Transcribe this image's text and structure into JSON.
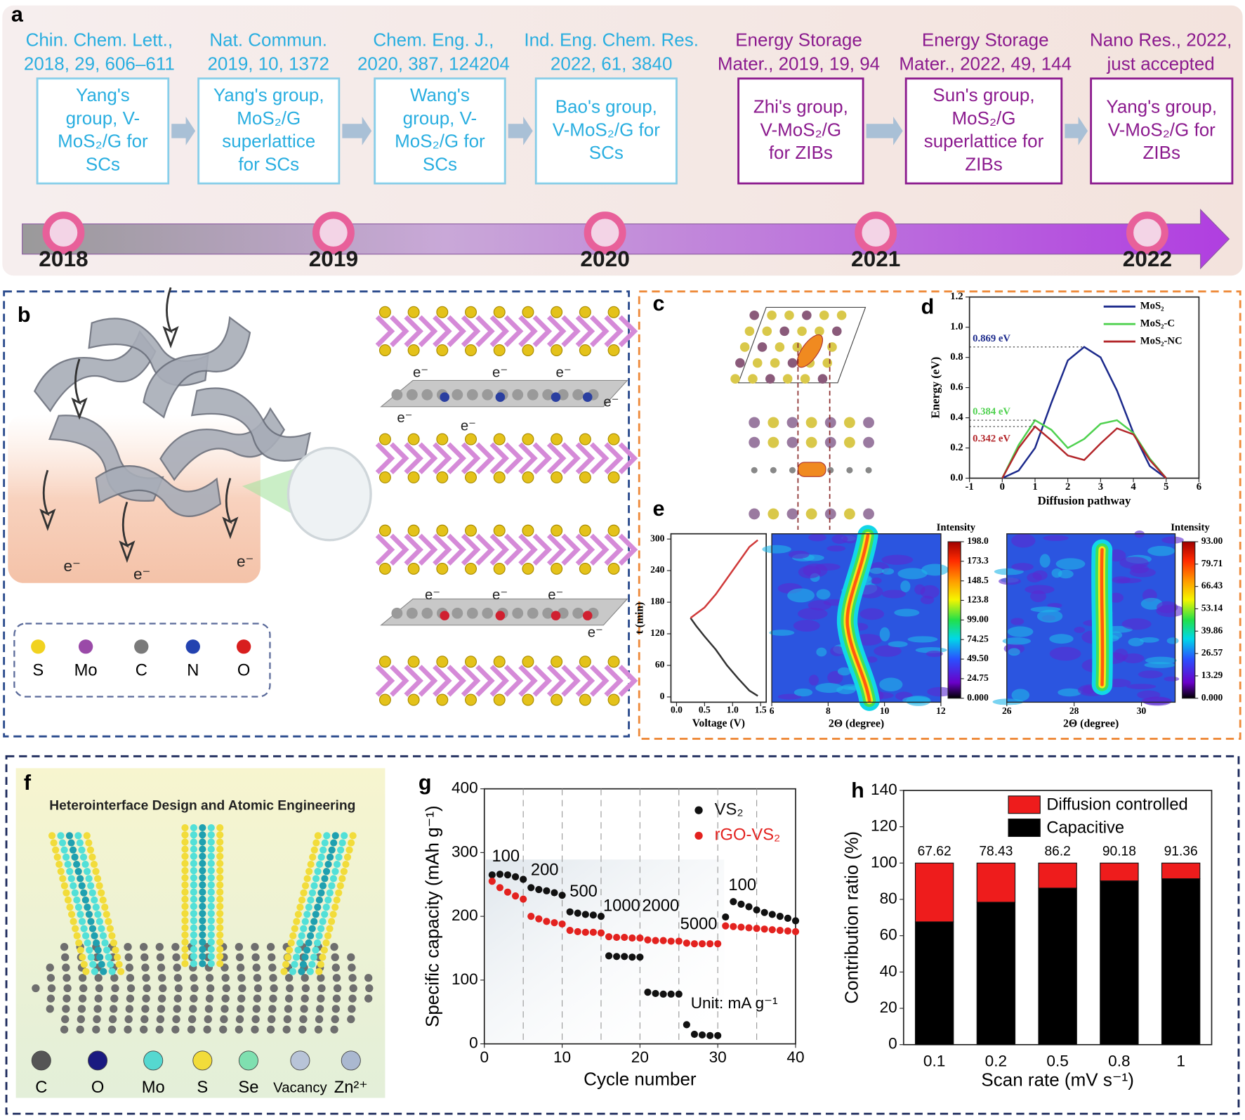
{
  "panel_labels": [
    "a",
    "b",
    "c",
    "d",
    "e",
    "f",
    "g",
    "h"
  ],
  "timeline": {
    "entries": [
      {
        "citation": [
          "Chin. Chem. Lett.,",
          "2018, 29, 606–611"
        ],
        "box": [
          "Yang's",
          "group, V-",
          "MoS₂/G for",
          "SCs"
        ],
        "color": "#29aee0"
      },
      {
        "citation": [
          "Nat. Commun.",
          "2019, 10, 1372"
        ],
        "box": [
          "Yang's group,",
          "MoS₂/G",
          "superlattice",
          "for SCs"
        ],
        "color": "#29aee0"
      },
      {
        "citation": [
          "Chem. Eng. J.,",
          "2020, 387, 124204"
        ],
        "box": [
          "Wang's",
          "group, V-",
          "MoS₂/G for",
          "SCs"
        ],
        "color": "#29aee0"
      },
      {
        "citation": [
          "Ind. Eng. Chem. Res.",
          "2022, 61, 3840"
        ],
        "box": [
          "Bao's group,",
          "V-MoS₂/G for",
          "SCs"
        ],
        "color": "#29aee0"
      },
      {
        "citation": [
          "Energy Storage",
          "Mater., 2019, 19, 94"
        ],
        "box": [
          "Zhi's group,",
          "V-MoS₂/G",
          "for ZIBs"
        ],
        "color": "#8b1a8e"
      },
      {
        "citation": [
          "Energy Storage",
          "Mater., 2022, 49, 144"
        ],
        "box": [
          "Sun's group,",
          "MoS₂/G",
          "superlattice for",
          "ZIBs"
        ],
        "color": "#8b1a8e"
      },
      {
        "citation": [
          "Nano Res., 2022,",
          "just accepted"
        ],
        "box": [
          "Yang's group,",
          "V-MoS₂/G for",
          "ZIBs"
        ],
        "color": "#8b1a8e"
      }
    ],
    "years": [
      "2018",
      "2019",
      "2020",
      "2021",
      "2022"
    ]
  },
  "panel_b": {
    "electron": "e⁻",
    "legend": [
      "S",
      "Mo",
      "C",
      "N",
      "O"
    ]
  },
  "panel_f": {
    "title": "Heterointerface Design and Atomic Engineering",
    "legend": [
      "C",
      "O",
      "Mo",
      "S",
      "Se",
      "Vacancy",
      "Zn²⁺"
    ]
  },
  "chart_data": [
    {
      "type": "line",
      "xlabel": "Diffusion pathway",
      "ylabel": "Energy (eV)",
      "x": [
        0,
        0.5,
        1,
        1.5,
        2,
        2.5,
        3,
        3.5,
        4,
        4.5,
        5
      ],
      "series": [
        {
          "name": "MoS₂",
          "color": "#1c2a8c",
          "values": [
            0,
            0.05,
            0.2,
            0.5,
            0.78,
            0.869,
            0.8,
            0.58,
            0.3,
            0.08,
            0
          ]
        },
        {
          "name": "MoS₂-C",
          "color": "#4fd14f",
          "values": [
            0,
            0.22,
            0.384,
            0.32,
            0.2,
            0.26,
            0.36,
            0.384,
            0.3,
            0.13,
            0
          ]
        },
        {
          "name": "MoS₂-NC",
          "color": "#b3262a",
          "values": [
            0,
            0.2,
            0.342,
            0.25,
            0.15,
            0.12,
            0.23,
            0.33,
            0.29,
            0.12,
            0
          ]
        }
      ],
      "annotations": [
        "0.869 eV",
        "0.384 eV",
        "0.342 eV"
      ],
      "xlim": [
        -1,
        6
      ],
      "xticks": [
        -1,
        0,
        1,
        2,
        3,
        4,
        5,
        6
      ],
      "ylim": [
        0,
        1.2
      ],
      "yticks": [
        {
          "value": 0,
          "label": "0.0"
        },
        0.2,
        0.4,
        0.6,
        0.8,
        {
          "value": 1,
          "label": "1.0"
        },
        1.2
      ]
    },
    {
      "type": "line",
      "xlabel": "Voltage (V)",
      "ylabel": "t (min)",
      "series": [
        {
          "color": "#333333",
          "x": [
            0.25,
            0.35,
            0.5,
            0.7,
            0.9,
            1.1,
            1.3,
            1.45
          ],
          "values": [
            150,
            135,
            115,
            90,
            60,
            35,
            12,
            2
          ]
        },
        {
          "color": "#d03a3a",
          "x": [
            0.25,
            0.35,
            0.5,
            0.7,
            0.9,
            1.1,
            1.3,
            1.45
          ],
          "values": [
            150,
            158,
            170,
            195,
            225,
            255,
            285,
            298
          ]
        }
      ],
      "xlim": [
        -0.1,
        1.6
      ],
      "xticks": [
        {
          "value": 0,
          "label": "0.0"
        },
        0.5,
        {
          "value": 1,
          "label": "1.0"
        },
        1.5
      ],
      "ylim": [
        -10,
        310
      ],
      "yticks": [
        0,
        60,
        120,
        180,
        240,
        300
      ]
    },
    {
      "type": "heatmap",
      "xlabel": "2Θ (degree)",
      "xlim": [
        6,
        12
      ],
      "xticks": [
        6,
        8,
        10,
        12
      ],
      "colorbar": {
        "title": "Intensity",
        "clim": [
          0,
          198
        ],
        "ticks": [
          {
            "value": 198,
            "label": "198.0"
          },
          {
            "value": 173.3,
            "label": "173.3"
          },
          {
            "value": 148.5,
            "label": "148.5"
          },
          {
            "value": 123.8,
            "label": "123.8"
          },
          {
            "value": 99,
            "label": "99.00"
          },
          {
            "value": 74.25,
            "label": "74.25"
          },
          {
            "value": 49.5,
            "label": "49.50"
          },
          {
            "value": 24.75,
            "label": "24.75"
          },
          {
            "value": 0,
            "label": "0.000"
          }
        ]
      }
    },
    {
      "type": "heatmap",
      "xlabel": "2Θ (degree)",
      "xlim": [
        26,
        31
      ],
      "xticks": [
        26,
        28,
        30
      ],
      "colorbar": {
        "title": "Intensity",
        "clim": [
          0,
          93
        ],
        "ticks": [
          {
            "value": 93,
            "label": "93.00"
          },
          {
            "value": 79.71,
            "label": "79.71"
          },
          {
            "value": 66.43,
            "label": "66.43"
          },
          {
            "value": 53.14,
            "label": "53.14"
          },
          {
            "value": 39.86,
            "label": "39.86"
          },
          {
            "value": 26.57,
            "label": "26.57"
          },
          {
            "value": 13.29,
            "label": "13.29"
          },
          {
            "value": 0,
            "label": "0.000"
          }
        ]
      }
    },
    {
      "type": "scatter",
      "xlabel": "Cycle number",
      "ylabel": "Specific capacity (mAh g⁻¹)",
      "x": [
        1,
        2,
        3,
        4,
        5,
        6,
        7,
        8,
        9,
        10,
        11,
        12,
        13,
        14,
        15,
        16,
        17,
        18,
        19,
        20,
        21,
        22,
        23,
        24,
        25,
        26,
        27,
        28,
        29,
        30,
        31,
        32,
        33,
        34,
        35,
        36,
        37,
        38,
        39,
        40
      ],
      "series": [
        {
          "name": "VS₂",
          "color": "#111111",
          "values": [
            265,
            266,
            265,
            262,
            258,
            245,
            242,
            240,
            237,
            233,
            207,
            205,
            203,
            202,
            200,
            138,
            137,
            137,
            136,
            136,
            81,
            79,
            78,
            78,
            78,
            30,
            15,
            14,
            13,
            13,
            199,
            223,
            219,
            215,
            210,
            206,
            203,
            200,
            197,
            193
          ]
        },
        {
          "name": "rGO-VS₂",
          "color": "#e3221f",
          "values": [
            255,
            245,
            238,
            232,
            227,
            200,
            196,
            192,
            190,
            188,
            178,
            176,
            175,
            175,
            174,
            168,
            167,
            167,
            166,
            166,
            163,
            162,
            162,
            161,
            161,
            158,
            157,
            157,
            157,
            157,
            185,
            184,
            183,
            182,
            181,
            180,
            179,
            178,
            177,
            176
          ]
        }
      ],
      "rate_labels": [
        "100",
        "200",
        "500",
        "1000",
        "2000",
        "5000",
        "100"
      ],
      "unit_label": "Unit: mA g⁻¹",
      "vlines": [
        5,
        10,
        15,
        20,
        25,
        30,
        35
      ],
      "xlim": [
        0,
        40
      ],
      "xticks": [
        0,
        10,
        20,
        30,
        40
      ],
      "ylim": [
        0,
        400
      ],
      "yticks": [
        0,
        100,
        200,
        300,
        400
      ]
    },
    {
      "type": "bar",
      "xlabel": "Scan rate (mV s⁻¹)",
      "ylabel": "Contribution ratio (%)",
      "categories": [
        "0.1",
        "0.2",
        "0.5",
        "0.8",
        "1"
      ],
      "series": [
        {
          "name": "Capacitive",
          "color": "#000000",
          "values": [
            67.62,
            78.43,
            86.2,
            90.18,
            91.36
          ]
        },
        {
          "name": "Diffusion controlled",
          "color": "#ee1c1c",
          "values": [
            32.38,
            21.57,
            13.8,
            9.82,
            8.64
          ]
        }
      ],
      "ylim": [
        0,
        140
      ],
      "yticks": [
        0,
        20,
        40,
        60,
        80,
        100,
        120,
        140
      ]
    }
  ]
}
